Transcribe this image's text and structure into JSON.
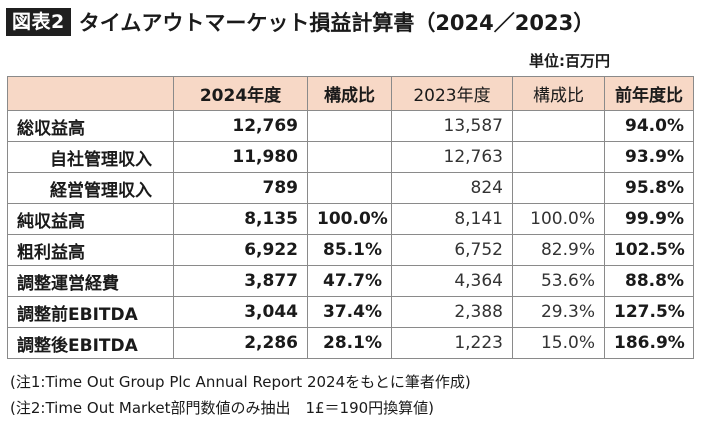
{
  "header": {
    "fig_label": "図表2",
    "title": "タイムアウトマーケット損益計算書（2024／2023）"
  },
  "unit_label": "単位:百万円",
  "table": {
    "columns": [
      "",
      "2024年度",
      "構成比",
      "2023年度",
      "構成比",
      "前年度比"
    ],
    "rows": [
      {
        "item": "総収益高",
        "indent": false,
        "v2024": "12,769",
        "r2024": "",
        "v2023": "13,587",
        "r2023": "",
        "yoy": "94.0%"
      },
      {
        "item": "自社管理収入",
        "indent": true,
        "v2024": "11,980",
        "r2024": "",
        "v2023": "12,763",
        "r2023": "",
        "yoy": "93.9%"
      },
      {
        "item": "経営管理収入",
        "indent": true,
        "v2024": "789",
        "r2024": "",
        "v2023": "824",
        "r2023": "",
        "yoy": "95.8%"
      },
      {
        "item": "純収益高",
        "indent": false,
        "v2024": "8,135",
        "r2024": "100.0%",
        "v2023": "8,141",
        "r2023": "100.0%",
        "yoy": "99.9%"
      },
      {
        "item": "粗利益高",
        "indent": false,
        "v2024": "6,922",
        "r2024": "85.1%",
        "v2023": "6,752",
        "r2023": "82.9%",
        "yoy": "102.5%"
      },
      {
        "item": "調整運営経費",
        "indent": false,
        "v2024": "3,877",
        "r2024": "47.7%",
        "v2023": "4,364",
        "r2023": "53.6%",
        "yoy": "88.8%"
      },
      {
        "item": "調整前EBITDA",
        "indent": false,
        "v2024": "3,044",
        "r2024": "37.4%",
        "v2023": "2,388",
        "r2023": "29.3%",
        "yoy": "127.5%"
      },
      {
        "item": "調整後EBITDA",
        "indent": false,
        "v2024": "2,286",
        "r2024": "28.1%",
        "v2023": "1,223",
        "r2023": "15.0%",
        "yoy": "186.9%"
      }
    ]
  },
  "notes": [
    "(注1:Time Out Group Plc Annual Report 2024をもとに筆者作成)",
    "(注2:Time Out Market部門数値のみ抽出　1£＝190円換算値)"
  ],
  "colors": {
    "header_bg": "#f7d8c6",
    "label_bg": "#1f1f1f",
    "border": "#8a8a8a"
  }
}
